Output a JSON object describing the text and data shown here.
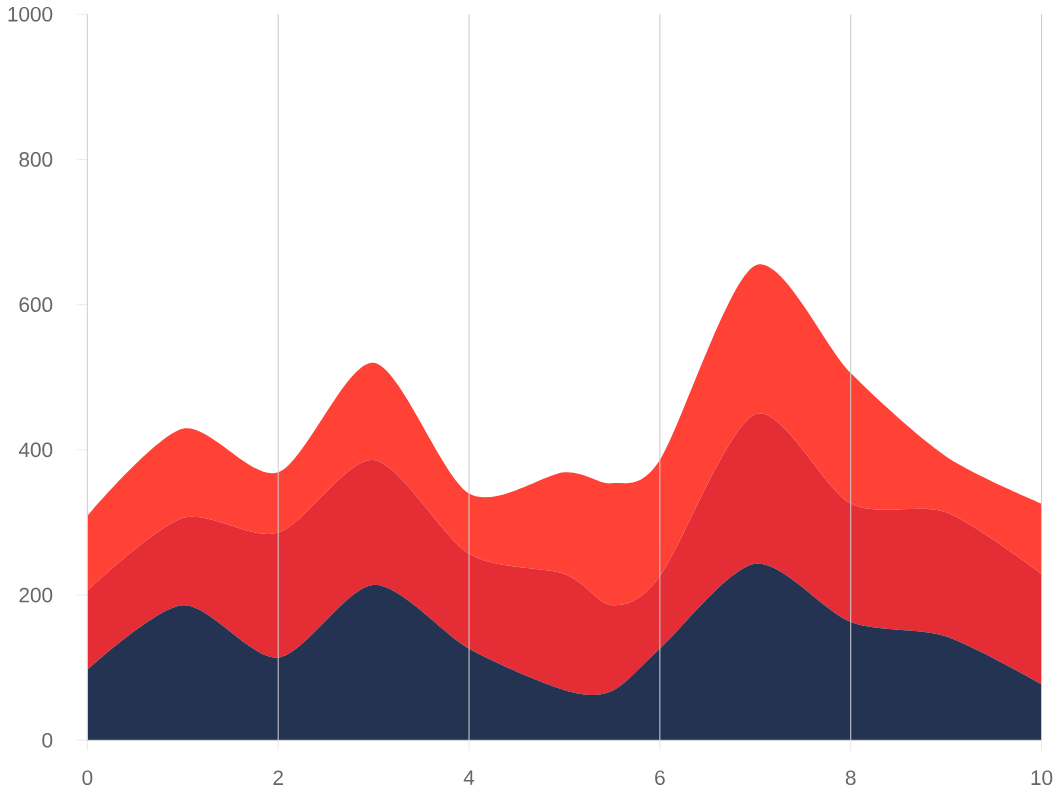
{
  "chart_data": {
    "type": "area",
    "stacked": true,
    "x": [
      0,
      1,
      2,
      3,
      4,
      5,
      5.5,
      6,
      7,
      8,
      9,
      10
    ],
    "xlim": [
      0,
      10
    ],
    "ylim": [
      0,
      1000
    ],
    "xticks": [
      0,
      2,
      4,
      6,
      8,
      10
    ],
    "yticks": [
      0,
      200,
      400,
      600,
      800,
      1000
    ],
    "grid": "x",
    "series": [
      {
        "color": "#253352",
        "values": [
          97,
          186,
          114,
          214,
          126,
          69,
          68,
          126,
          243,
          163,
          143,
          77
        ]
      },
      {
        "color": "#e52d35",
        "values": [
          109,
          120,
          172,
          172,
          131,
          160,
          118,
          100,
          206,
          163,
          171,
          152
        ]
      },
      {
        "color": "#ff4136",
        "values": [
          103,
          123,
          83,
          134,
          83,
          140,
          168,
          160,
          205,
          180,
          77,
          97
        ]
      }
    ]
  }
}
